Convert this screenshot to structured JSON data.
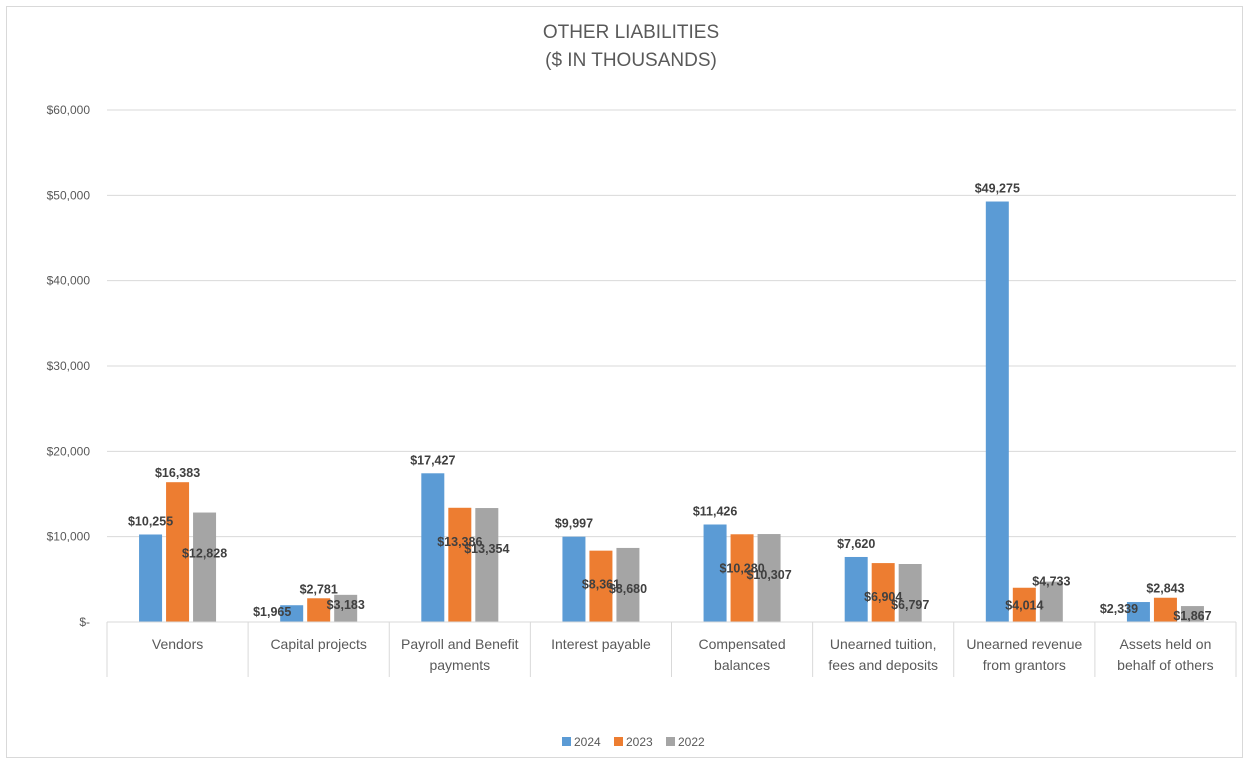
{
  "chart_data": {
    "type": "bar",
    "title": "OTHER LIABILITIES",
    "subtitle": "($ IN THOUSANDS)",
    "xlabel": "",
    "ylabel": "",
    "ylim": [
      0,
      60000
    ],
    "yticks": [
      0,
      10000,
      20000,
      30000,
      40000,
      50000,
      60000
    ],
    "ytick_labels": [
      "$-",
      "$10,000",
      "$20,000",
      "$30,000",
      "$40,000",
      "$50,000",
      "$60,000"
    ],
    "grid": true,
    "legend_position": "bottom",
    "categories": [
      [
        "Vendors"
      ],
      [
        "Capital projects"
      ],
      [
        "Payroll and Benefit",
        "payments"
      ],
      [
        "Interest payable"
      ],
      [
        "Compensated",
        "balances"
      ],
      [
        "Unearned tuition,",
        "fees and deposits"
      ],
      [
        "Unearned revenue",
        "from grantors"
      ],
      [
        "Assets held on",
        "behalf of others"
      ]
    ],
    "series": [
      {
        "name": "2024",
        "color": "#5b9bd5",
        "values": [
          10255,
          1965,
          17427,
          9997,
          11426,
          7620,
          49275,
          2339
        ],
        "labels": [
          "$10,255",
          "$1,965",
          "$17,427",
          "$9,997",
          "$11,426",
          "$7,620",
          "$49,275",
          "$2,339"
        ]
      },
      {
        "name": "2023",
        "color": "#ed7d31",
        "values": [
          16383,
          2781,
          13386,
          8361,
          10280,
          6904,
          4014,
          2843
        ],
        "labels": [
          "$16,383",
          "$2,781",
          "$13,386",
          "$8,361",
          "$10,280",
          "$6,904",
          "$4,014",
          "$2,843"
        ]
      },
      {
        "name": "2022",
        "color": "#a5a5a5",
        "values": [
          12828,
          3183,
          13354,
          8680,
          10307,
          6797,
          4733,
          1867
        ],
        "labels": [
          "$12,828",
          "$3,183",
          "$13,354",
          "$8,680",
          "$10,307",
          "$6,797",
          "$4,733",
          "$1,867"
        ]
      }
    ]
  }
}
